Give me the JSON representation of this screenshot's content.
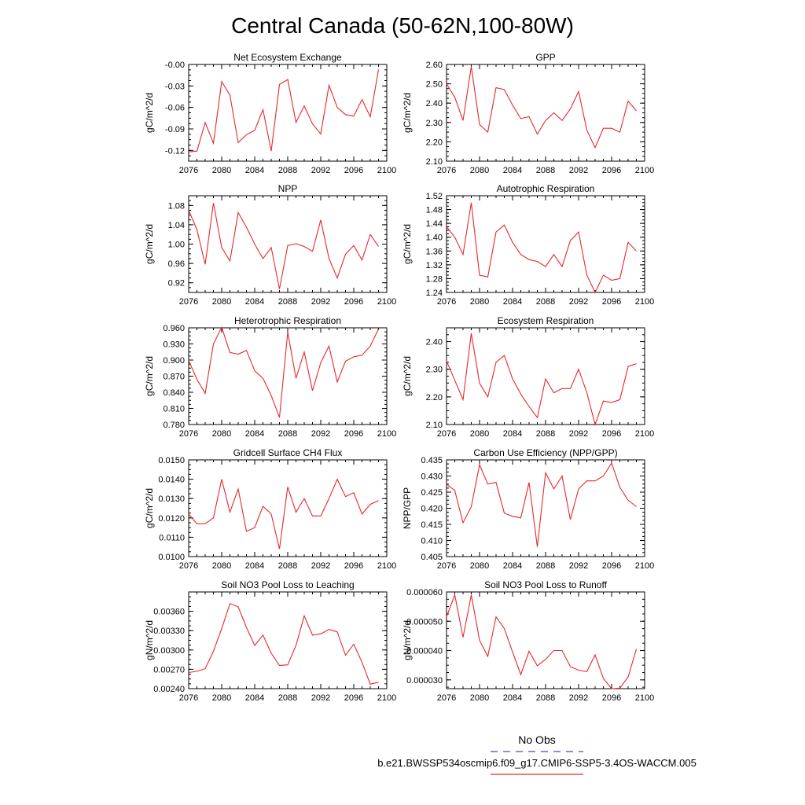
{
  "title": "Central Canada (50-62N,100-80W)",
  "colors": {
    "model_line": "#e8282b",
    "obs_line": "#4a4ab8",
    "axis": "#000000"
  },
  "legend": {
    "obs_label": "No Obs",
    "model_label": "b.e21.BWSSP534oscmip6.f09_g17.CMIP6-SSP5-3.4OS-WACCM.005"
  },
  "chart_data": [
    {
      "type": "line",
      "title": "Net Ecosystem Exchange",
      "ylabel": "gC/m^2/d",
      "xlim": [
        2076,
        2100
      ],
      "ylim": [
        -0.135,
        0.0
      ],
      "xticks": [
        "2076",
        "2080",
        "2084",
        "2088",
        "2092",
        "2096",
        "2100"
      ],
      "yticks": [
        "-0.12",
        "-0.09",
        "-0.06",
        "-0.03",
        "-0.00"
      ],
      "ytick_values": [
        -0.12,
        -0.09,
        -0.06,
        -0.03,
        0.0
      ],
      "x": [
        2076,
        2077,
        2078,
        2079,
        2080,
        2081,
        2082,
        2083,
        2084,
        2085,
        2086,
        2087,
        2088,
        2089,
        2090,
        2091,
        2092,
        2093,
        2094,
        2095,
        2096,
        2097,
        2098,
        2099
      ],
      "values": [
        -0.122,
        -0.121,
        -0.081,
        -0.11,
        -0.024,
        -0.043,
        -0.109,
        -0.098,
        -0.092,
        -0.063,
        -0.121,
        -0.028,
        -0.021,
        -0.081,
        -0.058,
        -0.083,
        -0.097,
        -0.029,
        -0.06,
        -0.07,
        -0.072,
        -0.049,
        -0.073,
        -0.007
      ]
    },
    {
      "type": "line",
      "title": "GPP",
      "ylabel": "gC/m^2/d",
      "xlim": [
        2076,
        2100
      ],
      "ylim": [
        2.1,
        2.6
      ],
      "xticks": [
        "2076",
        "2080",
        "2084",
        "2088",
        "2092",
        "2096",
        "2100"
      ],
      "yticks": [
        "2.10",
        "2.20",
        "2.30",
        "2.40",
        "2.50",
        "2.60"
      ],
      "ytick_values": [
        2.1,
        2.2,
        2.3,
        2.4,
        2.5,
        2.6
      ],
      "x": [
        2076,
        2077,
        2078,
        2079,
        2080,
        2081,
        2082,
        2083,
        2084,
        2085,
        2086,
        2087,
        2088,
        2089,
        2090,
        2091,
        2092,
        2093,
        2094,
        2095,
        2096,
        2097,
        2098,
        2099
      ],
      "values": [
        2.5,
        2.43,
        2.31,
        2.59,
        2.29,
        2.25,
        2.48,
        2.47,
        2.39,
        2.32,
        2.33,
        2.24,
        2.31,
        2.35,
        2.31,
        2.37,
        2.46,
        2.26,
        2.17,
        2.27,
        2.27,
        2.25,
        2.41,
        2.36
      ]
    },
    {
      "type": "line",
      "title": "NPP",
      "ylabel": "gC/m^2/d",
      "xlim": [
        2076,
        2100
      ],
      "ylim": [
        0.9,
        1.1
      ],
      "xticks": [
        "2076",
        "2080",
        "2084",
        "2088",
        "2092",
        "2096",
        "2100"
      ],
      "yticks": [
        "0.92",
        "0.96",
        "1.00",
        "1.04",
        "1.08"
      ],
      "ytick_values": [
        0.92,
        0.96,
        1.0,
        1.04,
        1.08
      ],
      "x": [
        2076,
        2077,
        2078,
        2079,
        2080,
        2081,
        2082,
        2083,
        2084,
        2085,
        2086,
        2087,
        2088,
        2089,
        2090,
        2091,
        2092,
        2093,
        2094,
        2095,
        2096,
        2097,
        2098,
        2099
      ],
      "values": [
        1.07,
        1.03,
        0.958,
        1.085,
        0.993,
        0.965,
        1.065,
        1.035,
        1.0,
        0.97,
        0.993,
        0.907,
        0.997,
        1.001,
        0.995,
        0.985,
        1.05,
        0.97,
        0.93,
        0.979,
        0.997,
        0.967,
        1.02,
        0.995
      ]
    },
    {
      "type": "line",
      "title": "Autotrophic Respiration",
      "ylabel": "gC/m^2/d",
      "xlim": [
        2076,
        2100
      ],
      "ylim": [
        1.24,
        1.52
      ],
      "xticks": [
        "2076",
        "2080",
        "2084",
        "2088",
        "2092",
        "2096",
        "2100"
      ],
      "yticks": [
        "1.24",
        "1.28",
        "1.32",
        "1.36",
        "1.40",
        "1.44",
        "1.48",
        "1.52"
      ],
      "ytick_values": [
        1.24,
        1.28,
        1.32,
        1.36,
        1.4,
        1.44,
        1.48,
        1.52
      ],
      "x": [
        2076,
        2077,
        2078,
        2079,
        2080,
        2081,
        2082,
        2083,
        2084,
        2085,
        2086,
        2087,
        2088,
        2089,
        2090,
        2091,
        2092,
        2093,
        2094,
        2095,
        2096,
        2097,
        2098,
        2099
      ],
      "values": [
        1.43,
        1.4,
        1.35,
        1.5,
        1.29,
        1.285,
        1.415,
        1.435,
        1.385,
        1.35,
        1.335,
        1.33,
        1.315,
        1.35,
        1.315,
        1.39,
        1.415,
        1.29,
        1.24,
        1.29,
        1.275,
        1.28,
        1.385,
        1.36
      ]
    },
    {
      "type": "line",
      "title": "Heterotrophic Respiration",
      "ylabel": "gC/m^2/d",
      "xlim": [
        2076,
        2100
      ],
      "ylim": [
        0.78,
        0.96
      ],
      "xticks": [
        "2076",
        "2080",
        "2084",
        "2088",
        "2092",
        "2096",
        "2100"
      ],
      "yticks": [
        "0.780",
        "0.810",
        "0.840",
        "0.870",
        "0.900",
        "0.930",
        "0.960"
      ],
      "ytick_values": [
        0.78,
        0.81,
        0.84,
        0.87,
        0.9,
        0.93,
        0.96
      ],
      "x": [
        2076,
        2077,
        2078,
        2079,
        2080,
        2081,
        2082,
        2083,
        2084,
        2085,
        2086,
        2087,
        2088,
        2089,
        2090,
        2091,
        2092,
        2093,
        2094,
        2095,
        2096,
        2097,
        2098,
        2099
      ],
      "values": [
        0.899,
        0.864,
        0.838,
        0.93,
        0.961,
        0.914,
        0.911,
        0.918,
        0.88,
        0.866,
        0.834,
        0.793,
        0.952,
        0.866,
        0.915,
        0.843,
        0.895,
        0.926,
        0.859,
        0.898,
        0.906,
        0.909,
        0.926,
        0.958
      ]
    },
    {
      "type": "line",
      "title": "Ecosystem Respiration",
      "ylabel": "gC/m^2/d",
      "xlim": [
        2076,
        2100
      ],
      "ylim": [
        2.1,
        2.45
      ],
      "xticks": [
        "2076",
        "2080",
        "2084",
        "2088",
        "2092",
        "2096",
        "2100"
      ],
      "yticks": [
        "2.10",
        "2.20",
        "2.30",
        "2.40"
      ],
      "ytick_values": [
        2.1,
        2.2,
        2.3,
        2.4
      ],
      "x": [
        2076,
        2077,
        2078,
        2079,
        2080,
        2081,
        2082,
        2083,
        2084,
        2085,
        2086,
        2087,
        2088,
        2089,
        2090,
        2091,
        2092,
        2093,
        2094,
        2095,
        2096,
        2097,
        2098,
        2099
      ],
      "values": [
        2.33,
        2.26,
        2.19,
        2.43,
        2.25,
        2.2,
        2.325,
        2.35,
        2.265,
        2.21,
        2.165,
        2.125,
        2.265,
        2.215,
        2.23,
        2.23,
        2.3,
        2.215,
        2.1,
        2.185,
        2.18,
        2.19,
        2.31,
        2.32
      ]
    },
    {
      "type": "line",
      "title": "Gridcell Surface CH4 Flux",
      "ylabel": "gC/m^2/d",
      "xlim": [
        2076,
        2100
      ],
      "ylim": [
        0.01,
        0.015
      ],
      "xticks": [
        "2076",
        "2080",
        "2084",
        "2088",
        "2092",
        "2096",
        "2100"
      ],
      "yticks": [
        "0.0100",
        "0.0110",
        "0.0120",
        "0.0130",
        "0.0140",
        "0.0150"
      ],
      "ytick_values": [
        0.01,
        0.011,
        0.012,
        0.013,
        0.014,
        0.015
      ],
      "x": [
        2076,
        2077,
        2078,
        2079,
        2080,
        2081,
        2082,
        2083,
        2084,
        2085,
        2086,
        2087,
        2088,
        2089,
        2090,
        2091,
        2092,
        2093,
        2094,
        2095,
        2096,
        2097,
        2098,
        2099
      ],
      "values": [
        0.0122,
        0.0117,
        0.0117,
        0.012,
        0.014,
        0.0123,
        0.0135,
        0.0113,
        0.0115,
        0.0126,
        0.0122,
        0.0104,
        0.0136,
        0.0123,
        0.013,
        0.0121,
        0.0121,
        0.013,
        0.014,
        0.0131,
        0.0133,
        0.0122,
        0.0127,
        0.0129
      ]
    },
    {
      "type": "line",
      "title": "Carbon Use Efficiency (NPP/GPP)",
      "ylabel": "NPP/GPP",
      "xlim": [
        2076,
        2100
      ],
      "ylim": [
        0.405,
        0.435
      ],
      "xticks": [
        "2076",
        "2080",
        "2084",
        "2088",
        "2092",
        "2096",
        "2100"
      ],
      "yticks": [
        "0.405",
        "0.410",
        "0.415",
        "0.420",
        "0.425",
        "0.430",
        "0.435"
      ],
      "ytick_values": [
        0.405,
        0.41,
        0.415,
        0.42,
        0.425,
        0.43,
        0.435
      ],
      "x": [
        2076,
        2077,
        2078,
        2079,
        2080,
        2081,
        2082,
        2083,
        2084,
        2085,
        2086,
        2087,
        2088,
        2089,
        2090,
        2091,
        2092,
        2093,
        2094,
        2095,
        2096,
        2097,
        2098,
        2099
      ],
      "values": [
        0.4275,
        0.4255,
        0.4155,
        0.4205,
        0.4335,
        0.4275,
        0.428,
        0.4185,
        0.4175,
        0.417,
        0.428,
        0.408,
        0.431,
        0.426,
        0.43,
        0.4165,
        0.426,
        0.4285,
        0.4285,
        0.43,
        0.434,
        0.4265,
        0.4225,
        0.4205
      ]
    },
    {
      "type": "line",
      "title": "Soil NO3 Pool Loss to Leaching",
      "ylabel": "gN/m^2/d",
      "xlim": [
        2076,
        2100
      ],
      "ylim": [
        0.0024,
        0.0039
      ],
      "xticks": [
        "2076",
        "2080",
        "2084",
        "2088",
        "2092",
        "2096",
        "2100"
      ],
      "yticks": [
        "0.00240",
        "0.00270",
        "0.00300",
        "0.00330",
        "0.00360"
      ],
      "ytick_values": [
        0.0024,
        0.0027,
        0.003,
        0.0033,
        0.0036
      ],
      "x": [
        2076,
        2077,
        2078,
        2079,
        2080,
        2081,
        2082,
        2083,
        2084,
        2085,
        2086,
        2087,
        2088,
        2089,
        2090,
        2091,
        2092,
        2093,
        2094,
        2095,
        2096,
        2097,
        2098,
        2099
      ],
      "values": [
        0.00265,
        0.00267,
        0.00271,
        0.00298,
        0.00333,
        0.00372,
        0.00367,
        0.00335,
        0.00307,
        0.00323,
        0.00295,
        0.00276,
        0.00277,
        0.00307,
        0.00353,
        0.00323,
        0.00325,
        0.00332,
        0.00328,
        0.00292,
        0.00309,
        0.00281,
        0.00247,
        0.0025
      ]
    },
    {
      "type": "line",
      "title": "Soil NO3 Pool Loss to Runoff",
      "ylabel": "gN/m^2/d",
      "xlim": [
        2076,
        2100
      ],
      "ylim": [
        2.7e-05,
        6e-05
      ],
      "xticks": [
        "2076",
        "2080",
        "2084",
        "2088",
        "2092",
        "2096",
        "2100"
      ],
      "yticks": [
        "0.000030",
        "0.000040",
        "0.000050",
        "0.000060"
      ],
      "ytick_values": [
        3e-05,
        4e-05,
        5e-05,
        6e-05
      ],
      "x": [
        2076,
        2077,
        2078,
        2079,
        2080,
        2081,
        2082,
        2083,
        2084,
        2085,
        2086,
        2087,
        2088,
        2089,
        2090,
        2091,
        2092,
        2093,
        2094,
        2095,
        2096,
        2097,
        2098,
        2099
      ],
      "values": [
        5.15e-05,
        5.9e-05,
        4.45e-05,
        5.9e-05,
        4.35e-05,
        3.8e-05,
        5.15e-05,
        4.75e-05,
        3.95e-05,
        3.18e-05,
        3.98e-05,
        3.48e-05,
        3.7e-05,
        4e-05,
        4e-05,
        3.45e-05,
        3.33e-05,
        3.28e-05,
        3.85e-05,
        3.05e-05,
        2.7e-05,
        2.72e-05,
        3.1e-05,
        4.05e-05
      ]
    }
  ]
}
